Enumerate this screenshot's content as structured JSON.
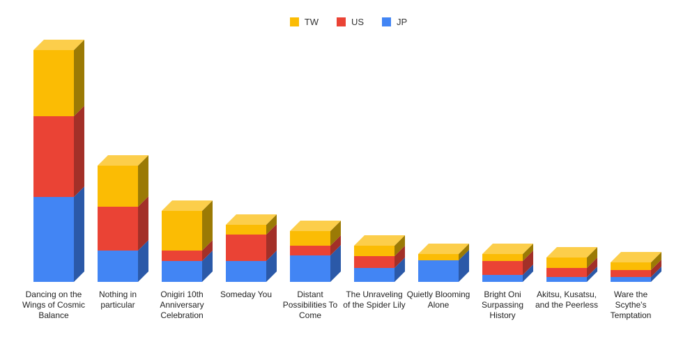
{
  "legend": [
    {
      "label": "TW",
      "color": "#FBBC04"
    },
    {
      "label": "US",
      "color": "#EA4335"
    },
    {
      "label": "JP",
      "color": "#4285F4"
    }
  ],
  "chart_data": {
    "type": "bar",
    "subtype": "stacked-column-3d",
    "title": "",
    "xlabel": "",
    "ylabel": "",
    "axes_visible": false,
    "legend_position": "top",
    "ylim": [
      0,
      350
    ],
    "categories": [
      "Dancing on the Wings of Cosmic Balance",
      "Nothing in particular",
      "Onigiri 10th Anniversary Celebration",
      "Someday You",
      "Distant Possibilities To Come",
      "The Unraveling of the Spider Lily",
      "Quietly Blooming Alone",
      "Bright Oni Surpassing History",
      "Akitsu, Kusatsu, and the Peerless",
      "Ware the Scythe's Temptation"
    ],
    "stack_order_bottom_to_top": [
      "JP",
      "US",
      "TW"
    ],
    "series": [
      {
        "name": "JP",
        "color_front": "#4285F4",
        "color_side": "#2B59A8",
        "color_top": "#6FA1F7",
        "values": [
          122,
          45,
          30,
          30,
          38,
          20,
          31,
          10,
          7,
          7
        ]
      },
      {
        "name": "US",
        "color_front": "#EA4335",
        "color_side": "#A33028",
        "color_top": "#EE7268",
        "values": [
          116,
          63,
          15,
          38,
          14,
          17,
          0,
          20,
          13,
          10
        ]
      },
      {
        "name": "TW",
        "color_front": "#FBBC04",
        "color_side": "#9B7A05",
        "color_top": "#FCCE4B",
        "values": [
          95,
          59,
          57,
          14,
          21,
          15,
          9,
          10,
          15,
          11
        ]
      }
    ]
  }
}
